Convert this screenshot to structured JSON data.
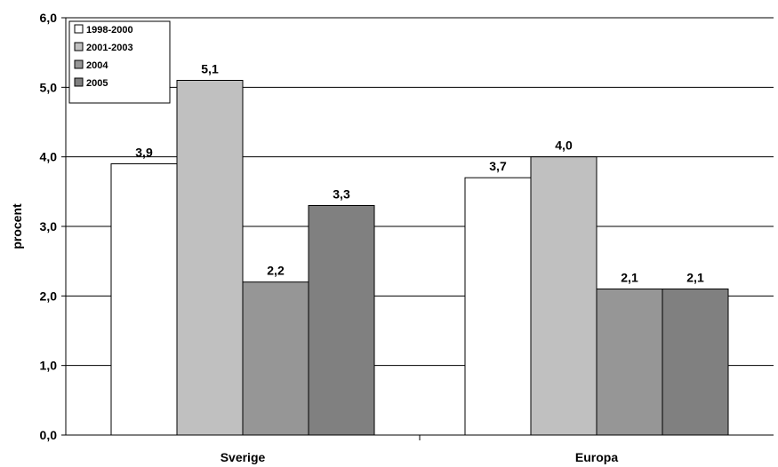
{
  "chart_data": {
    "type": "bar",
    "categories": [
      "Sverige",
      "Europa"
    ],
    "series": [
      {
        "name": "1998-2000",
        "values": [
          3.9,
          3.7
        ],
        "labels": [
          "3,9",
          "3,7"
        ],
        "color": "#ffffff"
      },
      {
        "name": "2001-2003",
        "values": [
          5.1,
          4.0
        ],
        "labels": [
          "5,1",
          "4,0"
        ],
        "color": "#c0c0c0"
      },
      {
        "name": "2004",
        "values": [
          2.2,
          2.1
        ],
        "labels": [
          "2,2",
          "2,1"
        ],
        "color": "#969696"
      },
      {
        "name": "2005",
        "values": [
          3.3,
          2.1
        ],
        "labels": [
          "3,3",
          "2,1"
        ],
        "color": "#808080"
      }
    ],
    "ylabel": "procent",
    "xlabel": "",
    "ylim": [
      0,
      6
    ],
    "yticks": [
      0,
      1,
      2,
      3,
      4,
      5,
      6
    ],
    "ytick_labels": [
      "0,0",
      "1,0",
      "2,0",
      "3,0",
      "4,0",
      "5,0",
      "6,0"
    ],
    "grid": true,
    "legend_position": "top-left"
  }
}
